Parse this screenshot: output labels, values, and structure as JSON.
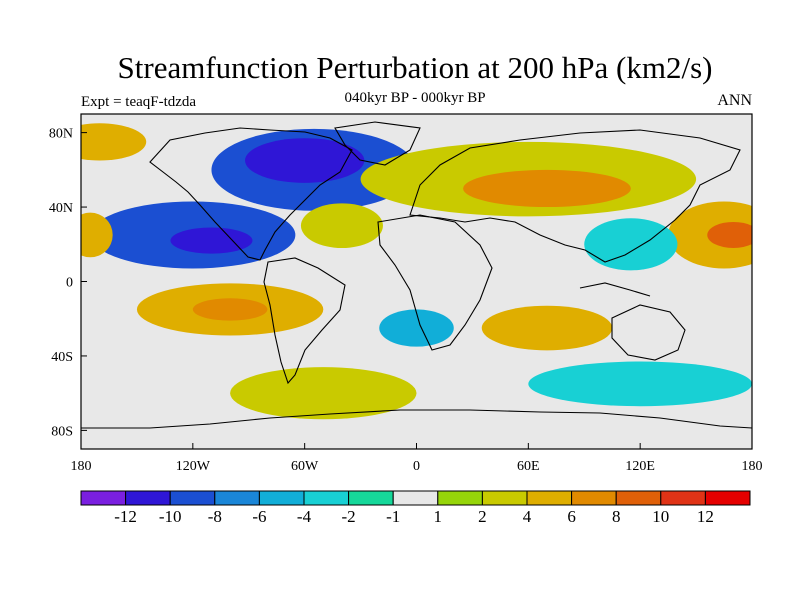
{
  "chart_data": {
    "type": "heatmap",
    "title": "Streamfunction Perturbation at 200 hPa (km2/s)",
    "subtitle": "040kyr BP - 000kyr BP",
    "left_label": "Expt = teaqF-tdzda",
    "right_label": "ANN",
    "x_ticks": [
      {
        "label": "180",
        "lon": -180
      },
      {
        "label": "120W",
        "lon": -120
      },
      {
        "label": "60W",
        "lon": -60
      },
      {
        "label": "0",
        "lon": 0
      },
      {
        "label": "60E",
        "lon": 60
      },
      {
        "label": "120E",
        "lon": 120
      },
      {
        "label": "180",
        "lon": 180
      }
    ],
    "y_ticks": [
      {
        "label": "80N",
        "lat": 80
      },
      {
        "label": "40N",
        "lat": 40
      },
      {
        "label": "0",
        "lat": 0
      },
      {
        "label": "40S",
        "lat": -40
      },
      {
        "label": "80S",
        "lat": -80
      }
    ],
    "xlim": [
      -180,
      180
    ],
    "ylim": [
      -90,
      90
    ],
    "levels": [
      "-12",
      "-10",
      "-8",
      "-6",
      "-4",
      "-2",
      "-1",
      "1",
      "2",
      "4",
      "6",
      "8",
      "10",
      "12"
    ],
    "colors": [
      "#7a1fe0",
      "#2f16d6",
      "#1b4fd2",
      "#1a86d8",
      "#11aed8",
      "#18d0d4",
      "#16d89a",
      "#e8e8e8",
      "#96d50a",
      "#c9ca00",
      "#dfae00",
      "#e18a00",
      "#e06008",
      "#e03316",
      "#e50000"
    ],
    "fields": [
      {
        "name": "n-atlantic-low",
        "lon": -55,
        "lat": 60,
        "rx": 55,
        "ry": 22,
        "level": "-8"
      },
      {
        "name": "n-atlantic-low-core",
        "lon": -60,
        "lat": 65,
        "rx": 32,
        "ry": 12,
        "level": "-10"
      },
      {
        "name": "n-pacific-high",
        "lon": -170,
        "lat": 75,
        "rx": 25,
        "ry": 10,
        "level": "4"
      },
      {
        "name": "c-pacific-low",
        "lon": -120,
        "lat": 25,
        "rx": 55,
        "ry": 18,
        "level": "-8"
      },
      {
        "name": "c-pacific-low-core",
        "lon": -110,
        "lat": 22,
        "rx": 22,
        "ry": 7,
        "level": "-10"
      },
      {
        "name": "w-pacific-high-w",
        "lon": -175,
        "lat": 25,
        "rx": 12,
        "ry": 12,
        "level": "4"
      },
      {
        "name": "atlantic-tropic-high",
        "lon": -40,
        "lat": 30,
        "rx": 22,
        "ry": 12,
        "level": "2"
      },
      {
        "name": "eurasia-high",
        "lon": 60,
        "lat": 55,
        "rx": 90,
        "ry": 20,
        "level": "2"
      },
      {
        "name": "eurasia-high-core",
        "lon": 70,
        "lat": 50,
        "rx": 45,
        "ry": 10,
        "level": "6"
      },
      {
        "name": "nw-pacific-high",
        "lon": 165,
        "lat": 25,
        "rx": 30,
        "ry": 18,
        "level": "4"
      },
      {
        "name": "nw-pacific-high-core",
        "lon": 170,
        "lat": 25,
        "rx": 14,
        "ry": 7,
        "level": "8"
      },
      {
        "name": "asia-low",
        "lon": 115,
        "lat": 20,
        "rx": 25,
        "ry": 14,
        "level": "-2"
      },
      {
        "name": "s-pacific-high",
        "lon": -100,
        "lat": -15,
        "rx": 50,
        "ry": 14,
        "level": "4"
      },
      {
        "name": "s-pacific-high-core",
        "lon": -100,
        "lat": -15,
        "rx": 20,
        "ry": 6,
        "level": "6"
      },
      {
        "name": "s-atlantic-low",
        "lon": 0,
        "lat": -25,
        "rx": 20,
        "ry": 10,
        "level": "-4"
      },
      {
        "name": "s-indian-high",
        "lon": 70,
        "lat": -25,
        "rx": 35,
        "ry": 12,
        "level": "4"
      },
      {
        "name": "southern-ocean-high",
        "lon": -50,
        "lat": -60,
        "rx": 50,
        "ry": 14,
        "level": "2"
      },
      {
        "name": "southern-ocean-low",
        "lon": 120,
        "lat": -55,
        "rx": 60,
        "ry": 12,
        "level": "-2"
      }
    ]
  }
}
